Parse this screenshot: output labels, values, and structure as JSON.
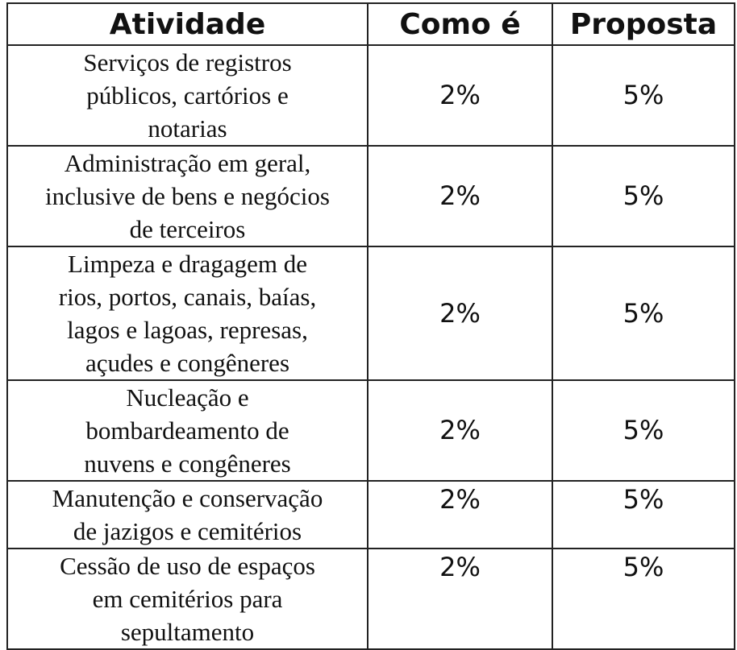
{
  "table": {
    "header": [
      "Atividade",
      "Como é",
      "Proposta"
    ],
    "rows": [
      [
        [
          "Serviços de registros",
          "públicos, cartórios e",
          "notarias"
        ],
        "2%",
        "5%"
      ],
      [
        [
          "Administração em geral,",
          "inclusive de bens e negócios",
          "de terceiros"
        ],
        "2%",
        "5%"
      ],
      [
        [
          "Limpeza e dragagem de",
          "rios, portos, canais, baías,",
          "lagos e lagoas, represas,",
          "açudes e congêneres"
        ],
        "2%",
        "5%"
      ],
      [
        [
          "Nucleação e",
          "bombardeamento de",
          "nuvens e congêneres"
        ],
        "2%",
        "5%"
      ],
      [
        [
          "Manutenção e conservação",
          "de jazigos e cemitérios"
        ],
        "2%",
        "5%"
      ],
      [
        [
          "Cessão de uso de espaços",
          "em cemitérios para",
          "sepultamento"
        ],
        "2%",
        "5%"
      ]
    ]
  }
}
